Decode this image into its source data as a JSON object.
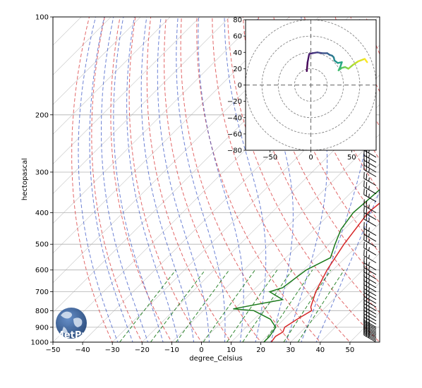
{
  "chart_data": [
    {
      "type": "skew-t",
      "xlabel": "degree_Celsius",
      "ylabel": "hectopascal",
      "xlim": [
        -50,
        60
      ],
      "ylim": [
        1000,
        100
      ],
      "yscale": "log",
      "x_ticks": [
        "−50",
        "−40",
        "−30",
        "−20",
        "−10",
        "0",
        "10",
        "20",
        "30",
        "40",
        "50"
      ],
      "x_tick_values": [
        -50,
        -40,
        -30,
        -20,
        -10,
        0,
        10,
        20,
        30,
        40,
        50
      ],
      "y_ticks": [
        "100",
        "200",
        "300",
        "400",
        "500",
        "600",
        "700",
        "800",
        "900",
        "1000"
      ],
      "y_tick_values": [
        100,
        200,
        300,
        400,
        500,
        600,
        700,
        800,
        900,
        1000
      ],
      "grid": true,
      "series": [
        {
          "role": "temperature",
          "color": "#d62728",
          "points": [
            {
              "p": 1000,
              "t": 23.5
            },
            {
              "p": 960,
              "t": 23.0
            },
            {
              "p": 930,
              "t": 24.0
            },
            {
              "p": 900,
              "t": 23.0
            },
            {
              "p": 850,
              "t": 24.5
            },
            {
              "p": 800,
              "t": 26.5
            },
            {
              "p": 780,
              "t": 25.0
            },
            {
              "p": 700,
              "t": 21.5
            },
            {
              "p": 600,
              "t": 18.0
            },
            {
              "p": 500,
              "t": 15.0
            },
            {
              "p": 400,
              "t": 12.5
            },
            {
              "p": 300,
              "t": 15.5
            },
            {
              "p": 270,
              "t": 15.0
            }
          ]
        },
        {
          "role": "dewpoint",
          "color": "#1a7a1a",
          "points": [
            {
              "p": 1000,
              "t": 21.0
            },
            {
              "p": 960,
              "t": 21.0
            },
            {
              "p": 900,
              "t": 20.0
            },
            {
              "p": 850,
              "t": 15.5
            },
            {
              "p": 800,
              "t": 7.0
            },
            {
              "p": 790,
              "t": -0.5
            },
            {
              "p": 740,
              "t": 13.0
            },
            {
              "p": 700,
              "t": 6.0
            },
            {
              "p": 680,
              "t": 9.0
            },
            {
              "p": 600,
              "t": 11.0
            },
            {
              "p": 550,
              "t": 15.0
            },
            {
              "p": 500,
              "t": 12.0
            },
            {
              "p": 450,
              "t": 9.0
            },
            {
              "p": 400,
              "t": 7.5
            },
            {
              "p": 300,
              "t": 9.5
            },
            {
              "p": 270,
              "t": 11.0
            }
          ]
        }
      ],
      "reference_lines": {
        "dry_adiabats_color": "#d62728",
        "moist_adiabats_color": "#1f3fbf",
        "mixing_ratio_color": "#1a7a1a",
        "isotherms_color": "#808080"
      },
      "wind_barbs": {
        "color": "#000000",
        "position": "right edge",
        "pressures": [
          1000,
          990,
          980,
          970,
          960,
          950,
          940,
          930,
          920,
          910,
          900,
          880,
          860,
          840,
          820,
          800,
          780,
          760,
          740,
          720,
          700,
          680,
          660,
          640,
          620,
          600,
          570,
          540,
          510,
          490,
          470,
          440,
          420,
          400,
          370,
          350,
          330,
          310,
          300,
          290,
          280,
          270
        ]
      }
    },
    {
      "type": "hodograph",
      "xlim": [
        -80,
        80
      ],
      "ylim": [
        -80,
        80
      ],
      "x_ticks": [
        "−50",
        "0",
        "50"
      ],
      "x_tick_values": [
        -50,
        0,
        50
      ],
      "y_ticks": [
        "80",
        "60",
        "40",
        "20",
        "0",
        "−20",
        "−40",
        "−60",
        "−80"
      ],
      "y_tick_values": [
        80,
        60,
        40,
        20,
        0,
        -20,
        -40,
        -60,
        -80
      ],
      "rings": [
        20,
        40,
        60,
        80
      ],
      "colormap": "viridis",
      "series": [
        {
          "points": [
            {
              "u": -5,
              "v": 17
            },
            {
              "u": -4,
              "v": 28
            },
            {
              "u": -2,
              "v": 38
            },
            {
              "u": 2,
              "v": 39
            },
            {
              "u": 8,
              "v": 40
            },
            {
              "u": 14,
              "v": 39
            },
            {
              "u": 20,
              "v": 39
            },
            {
              "u": 23,
              "v": 37
            },
            {
              "u": 26,
              "v": 36
            },
            {
              "u": 28,
              "v": 34
            },
            {
              "u": 29,
              "v": 30
            },
            {
              "u": 33,
              "v": 27
            },
            {
              "u": 38,
              "v": 28
            },
            {
              "u": 36,
              "v": 22
            },
            {
              "u": 34,
              "v": 18
            },
            {
              "u": 38,
              "v": 21
            },
            {
              "u": 42,
              "v": 22
            },
            {
              "u": 46,
              "v": 20
            },
            {
              "u": 52,
              "v": 25
            },
            {
              "u": 58,
              "v": 29
            },
            {
              "u": 66,
              "v": 32
            },
            {
              "u": 69,
              "v": 28
            }
          ]
        }
      ]
    }
  ],
  "logo": {
    "text": "MetPy"
  }
}
